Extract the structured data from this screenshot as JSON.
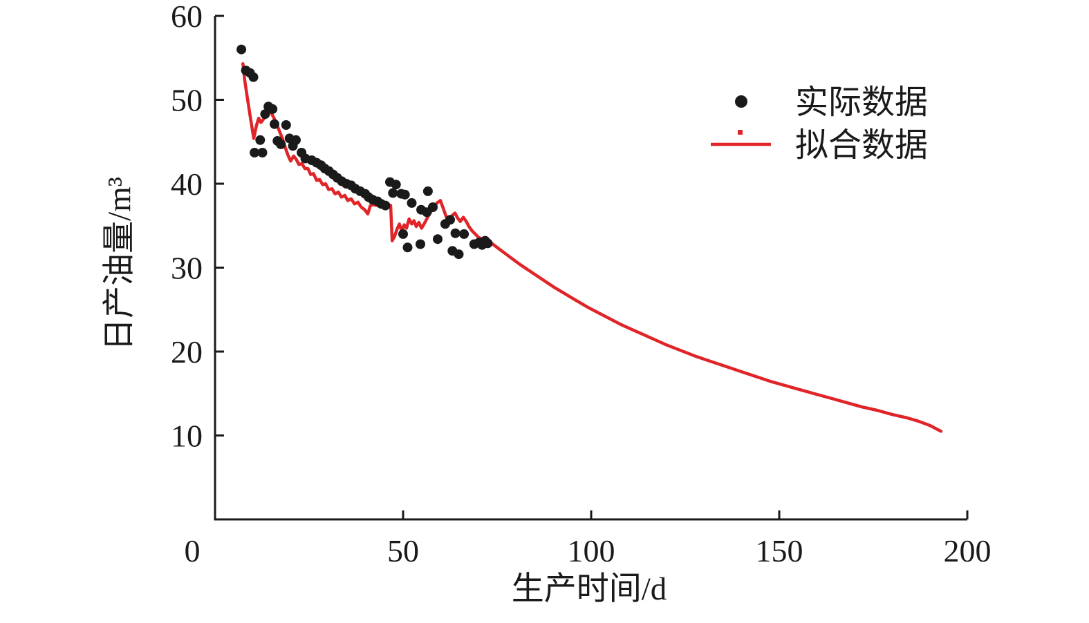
{
  "figure": {
    "background": "#ffffff"
  },
  "chart_data": {
    "type": "scatter+line",
    "title": "",
    "xlabel": "生产时间/d",
    "ylabel": "日产油量/m³",
    "xlim": [
      0,
      200
    ],
    "ylim": [
      0,
      60
    ],
    "x_ticks": [
      0,
      50,
      100,
      150,
      200
    ],
    "y_ticks": [
      10,
      20,
      30,
      40,
      50,
      60
    ],
    "grid": false,
    "legend_position": "upper right",
    "axis_color": "#1a1a1a",
    "series": [
      {
        "name": "实际数据",
        "type": "scatter",
        "color": "#1a1a1a",
        "points": [
          [
            7.0,
            56.0
          ],
          [
            8.2,
            53.5
          ],
          [
            9.3,
            53.2
          ],
          [
            10.2,
            52.7
          ],
          [
            10.5,
            43.7
          ],
          [
            12.0,
            45.2
          ],
          [
            12.6,
            43.7
          ],
          [
            13.3,
            48.3
          ],
          [
            14.2,
            49.2
          ],
          [
            15.3,
            48.9
          ],
          [
            15.8,
            47.1
          ],
          [
            16.6,
            45.1
          ],
          [
            17.5,
            44.7
          ],
          [
            18.9,
            47.0
          ],
          [
            19.8,
            45.4
          ],
          [
            20.7,
            44.5
          ],
          [
            21.5,
            45.2
          ],
          [
            23.0,
            43.7
          ],
          [
            24.0,
            43.0
          ],
          [
            25.7,
            42.8
          ],
          [
            27.0,
            42.5
          ],
          [
            28.2,
            42.2
          ],
          [
            29.2,
            41.8
          ],
          [
            30.3,
            41.5
          ],
          [
            31.4,
            41.1
          ],
          [
            32.5,
            40.7
          ],
          [
            33.7,
            40.3
          ],
          [
            34.9,
            40.0
          ],
          [
            36.2,
            39.8
          ],
          [
            37.3,
            39.4
          ],
          [
            38.6,
            39.1
          ],
          [
            39.9,
            38.8
          ],
          [
            40.8,
            38.4
          ],
          [
            41.9,
            38.1
          ],
          [
            43.2,
            37.9
          ],
          [
            44.2,
            37.6
          ],
          [
            45.3,
            37.4
          ],
          [
            46.5,
            40.2
          ],
          [
            47.3,
            38.9
          ],
          [
            48.1,
            39.9
          ],
          [
            49.5,
            38.8
          ],
          [
            50.5,
            38.7
          ],
          [
            52.3,
            37.7
          ],
          [
            54.8,
            36.9
          ],
          [
            56.3,
            36.6
          ],
          [
            56.6,
            39.1
          ],
          [
            57.9,
            37.2
          ],
          [
            50.0,
            34.0
          ],
          [
            51.2,
            32.4
          ],
          [
            54.6,
            32.8
          ],
          [
            59.2,
            33.4
          ],
          [
            61.2,
            35.2
          ],
          [
            62.5,
            35.7
          ],
          [
            63.9,
            34.1
          ],
          [
            66.2,
            34.0
          ],
          [
            63.1,
            32.0
          ],
          [
            64.8,
            31.6
          ],
          [
            68.9,
            32.8
          ],
          [
            70.2,
            33.0
          ],
          [
            71.0,
            32.7
          ],
          [
            71.8,
            33.2
          ],
          [
            72.5,
            32.9
          ]
        ]
      },
      {
        "name": "拟合数据",
        "type": "line",
        "color": "#e02428",
        "points": [
          [
            7.4,
            54.3
          ],
          [
            7.9,
            52.3
          ],
          [
            8.6,
            50.2
          ],
          [
            9.4,
            47.9
          ],
          [
            10.3,
            45.4
          ],
          [
            11.0,
            46.9
          ],
          [
            11.6,
            47.8
          ],
          [
            12.2,
            47.3
          ],
          [
            12.9,
            47.7
          ],
          [
            13.6,
            48.1
          ],
          [
            14.3,
            48.9
          ],
          [
            15.0,
            48.4
          ],
          [
            15.7,
            47.8
          ],
          [
            16.4,
            47.1
          ],
          [
            17.1,
            46.3
          ],
          [
            17.9,
            45.4
          ],
          [
            18.6,
            44.4
          ],
          [
            19.4,
            43.4
          ],
          [
            20.1,
            42.7
          ],
          [
            20.9,
            43.3
          ],
          [
            21.6,
            42.9
          ],
          [
            22.3,
            42.3
          ],
          [
            23.1,
            42.4
          ],
          [
            23.9,
            41.8
          ],
          [
            24.7,
            41.8
          ],
          [
            25.4,
            41.1
          ],
          [
            26.2,
            41.2
          ],
          [
            27.0,
            40.4
          ],
          [
            27.8,
            40.5
          ],
          [
            28.6,
            39.9
          ],
          [
            29.4,
            40.0
          ],
          [
            30.2,
            39.3
          ],
          [
            31.1,
            39.4
          ],
          [
            31.9,
            38.8
          ],
          [
            32.8,
            39.0
          ],
          [
            33.6,
            38.4
          ],
          [
            34.5,
            38.6
          ],
          [
            35.3,
            38.0
          ],
          [
            36.2,
            38.2
          ],
          [
            37.1,
            37.6
          ],
          [
            38.0,
            37.8
          ],
          [
            38.9,
            37.2
          ],
          [
            39.8,
            36.9
          ],
          [
            40.6,
            36.4
          ],
          [
            41.3,
            37.4
          ],
          [
            42.2,
            37.5
          ],
          [
            43.2,
            37.4
          ],
          [
            44.2,
            37.5
          ],
          [
            45.2,
            37.4
          ],
          [
            46.2,
            37.5
          ],
          [
            46.7,
            37.4
          ],
          [
            47.1,
            33.2
          ],
          [
            47.8,
            33.8
          ],
          [
            48.4,
            34.6
          ],
          [
            49.0,
            35.2
          ],
          [
            49.6,
            34.4
          ],
          [
            50.3,
            35.1
          ],
          [
            50.9,
            34.7
          ],
          [
            51.6,
            35.8
          ],
          [
            52.3,
            35.2
          ],
          [
            52.9,
            35.6
          ],
          [
            53.5,
            34.9
          ],
          [
            54.2,
            35.4
          ],
          [
            54.9,
            34.7
          ],
          [
            55.7,
            35.3
          ],
          [
            56.5,
            36.0
          ],
          [
            57.3,
            36.6
          ],
          [
            58.1,
            37.2
          ],
          [
            59.0,
            37.7
          ],
          [
            59.9,
            38.0
          ],
          [
            60.8,
            36.9
          ],
          [
            61.5,
            36.0
          ],
          [
            62.2,
            35.7
          ],
          [
            63.0,
            36.2
          ],
          [
            63.8,
            36.5
          ],
          [
            64.5,
            35.9
          ],
          [
            65.2,
            35.5
          ],
          [
            66.0,
            36.0
          ],
          [
            66.8,
            35.5
          ],
          [
            67.5,
            34.9
          ],
          [
            68.3,
            34.4
          ],
          [
            69.2,
            34.0
          ],
          [
            70.1,
            33.6
          ],
          [
            71.0,
            33.4
          ],
          [
            71.9,
            33.6
          ],
          [
            73,
            33.1
          ],
          [
            75,
            32.4
          ],
          [
            78,
            31.4
          ],
          [
            81,
            30.4
          ],
          [
            84,
            29.5
          ],
          [
            87,
            28.6
          ],
          [
            90,
            27.7
          ],
          [
            93,
            26.9
          ],
          [
            96,
            26.1
          ],
          [
            99,
            25.3
          ],
          [
            102,
            24.6
          ],
          [
            105,
            23.9
          ],
          [
            108,
            23.2
          ],
          [
            111,
            22.6
          ],
          [
            114,
            22.0
          ],
          [
            117,
            21.4
          ],
          [
            120,
            20.8
          ],
          [
            124,
            20.1
          ],
          [
            128,
            19.4
          ],
          [
            132,
            18.8
          ],
          [
            136,
            18.2
          ],
          [
            140,
            17.6
          ],
          [
            144,
            17.0
          ],
          [
            148,
            16.4
          ],
          [
            152,
            15.9
          ],
          [
            156,
            15.4
          ],
          [
            160,
            14.9
          ],
          [
            164,
            14.4
          ],
          [
            168,
            13.9
          ],
          [
            172,
            13.4
          ],
          [
            176,
            13.0
          ],
          [
            180,
            12.5
          ],
          [
            184,
            12.1
          ],
          [
            187,
            11.7
          ],
          [
            190,
            11.2
          ],
          [
            193,
            10.5
          ]
        ]
      }
    ]
  }
}
